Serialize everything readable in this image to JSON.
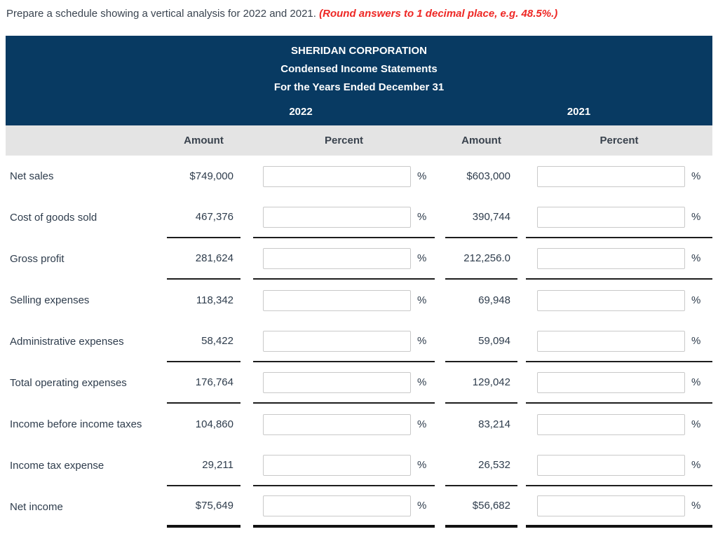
{
  "instruction": {
    "text": "Prepare a schedule showing a vertical analysis for 2022 and 2021.",
    "note": "(Round answers to 1 decimal place, e.g. 48.5%.)"
  },
  "header": {
    "company": "SHERIDAN CORPORATION",
    "subtitle1": "Condensed Income Statements",
    "subtitle2": "For the Years Ended December 31",
    "year_left": "2022",
    "year_right": "2021"
  },
  "columns": {
    "amount": "Amount",
    "percent": "Percent"
  },
  "percent_symbol": "%",
  "colors": {
    "navy_band": "#083a62",
    "gray_band": "#e4e4e4",
    "text": "#2e3c4c",
    "note_red": "#ee2724",
    "rule_black": "#1d1d1d"
  },
  "rows": [
    {
      "label": "Net sales",
      "amount_2022": "$749,000",
      "percent_2022": "",
      "amount_2021": "$603,000",
      "percent_2021": ""
    },
    {
      "label": "Cost of goods sold",
      "amount_2022": "467,376",
      "percent_2022": "",
      "amount_2021": "390,744",
      "percent_2021": ""
    },
    {
      "label": "Gross profit",
      "amount_2022": "281,624",
      "percent_2022": "",
      "amount_2021": "212,256.0",
      "percent_2021": ""
    },
    {
      "label": "Selling expenses",
      "amount_2022": "118,342",
      "percent_2022": "",
      "amount_2021": "69,948",
      "percent_2021": ""
    },
    {
      "label": "Administrative expenses",
      "amount_2022": "58,422",
      "percent_2022": "",
      "amount_2021": "59,094",
      "percent_2021": ""
    },
    {
      "label": "Total operating expenses",
      "amount_2022": "176,764",
      "percent_2022": "",
      "amount_2021": "129,042",
      "percent_2021": ""
    },
    {
      "label": "Income before income taxes",
      "amount_2022": "104,860",
      "percent_2022": "",
      "amount_2021": "83,214",
      "percent_2021": ""
    },
    {
      "label": "Income tax expense",
      "amount_2022": "29,211",
      "percent_2022": "",
      "amount_2021": "26,532",
      "percent_2021": ""
    },
    {
      "label": "Net income",
      "amount_2022": "$75,649",
      "percent_2022": "",
      "amount_2021": "$56,682",
      "percent_2021": ""
    }
  ]
}
